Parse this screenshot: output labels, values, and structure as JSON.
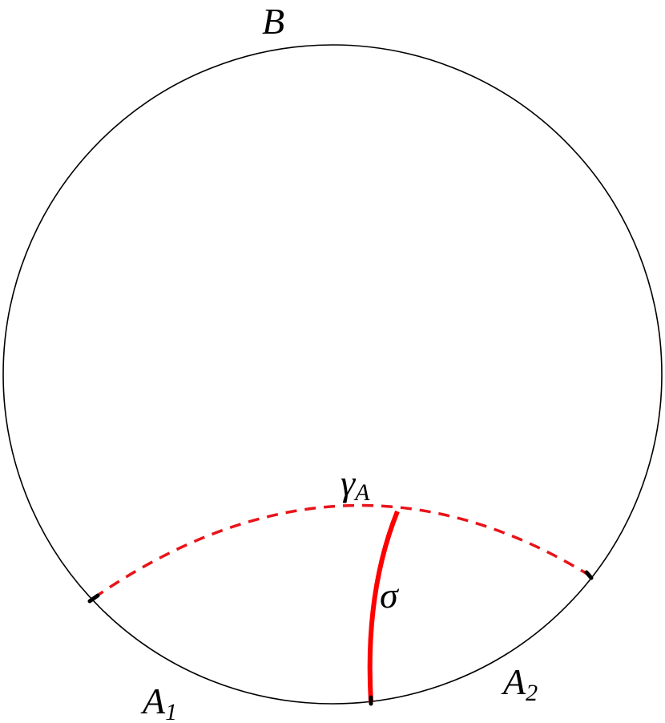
{
  "labels": {
    "boundary": {
      "text": "B"
    },
    "geodesic": {
      "text": "γ",
      "sub": "A"
    },
    "surface": {
      "text": "σ"
    },
    "region1": {
      "text": "A",
      "sub": "1"
    },
    "region2": {
      "text": "A",
      "sub": "2"
    }
  }
}
